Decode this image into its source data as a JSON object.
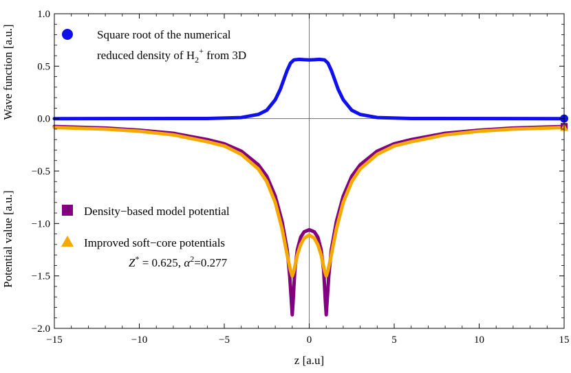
{
  "chart_data": {
    "type": "line",
    "title": "",
    "xlabel": "z  [a.u]",
    "ylabel_upper": "Wave function  [a.u.]",
    "ylabel_lower": "Potential value [a.u.]",
    "xlim": [
      -15,
      15
    ],
    "ylim": [
      -2.0,
      1.0
    ],
    "x_ticks": [
      -15,
      -10,
      -5,
      0,
      5,
      10,
      15
    ],
    "x_tick_labels": [
      "−15",
      "−10",
      "−5",
      "0",
      "5",
      "10",
      "15"
    ],
    "y_ticks": [
      -2.0,
      -1.5,
      -1.0,
      -0.5,
      0.0,
      0.5,
      1.0
    ],
    "y_tick_labels": [
      "−2.0",
      "−1.5",
      "−1.0",
      "−0.5",
      "0.0",
      "0.5",
      "1.0"
    ],
    "grid": false,
    "series": [
      {
        "key": "wave",
        "name_line1": "Square root of the numerical",
        "name_line2_prefix": "reduced density of H",
        "name_line2_sub": "2",
        "name_line2_sup": "+",
        "name_line2_suffix": " from 3D",
        "color": "#1010ee",
        "marker": "circle",
        "x": [
          -15,
          -6,
          -4,
          -3,
          -2.5,
          -2,
          -1.7,
          -1.5,
          -1.3,
          -1.1,
          -0.9,
          -0.6,
          -0.3,
          0,
          0.3,
          0.6,
          0.9,
          1.1,
          1.3,
          1.5,
          1.7,
          2,
          2.5,
          3,
          4,
          6,
          15
        ],
        "y": [
          0.0,
          0.001,
          0.01,
          0.04,
          0.08,
          0.18,
          0.28,
          0.37,
          0.46,
          0.53,
          0.56,
          0.565,
          0.562,
          0.56,
          0.562,
          0.565,
          0.56,
          0.53,
          0.46,
          0.37,
          0.28,
          0.18,
          0.08,
          0.04,
          0.01,
          0.001,
          0.0
        ]
      },
      {
        "key": "density",
        "name": "Density−based model potential",
        "color": "#800080",
        "marker": "square",
        "x": [
          -15,
          -12,
          -10,
          -8,
          -6,
          -5,
          -4,
          -3,
          -2.5,
          -2,
          -1.6,
          -1.3,
          -1.15,
          -1.05,
          -1.0,
          -0.95,
          -0.85,
          -0.7,
          -0.5,
          -0.3,
          0,
          0.3,
          0.5,
          0.7,
          0.85,
          0.95,
          1.0,
          1.05,
          1.15,
          1.3,
          1.6,
          2,
          2.5,
          3,
          4,
          5,
          6,
          8,
          10,
          12,
          15
        ],
        "y": [
          -0.075,
          -0.09,
          -0.11,
          -0.14,
          -0.2,
          -0.24,
          -0.31,
          -0.44,
          -0.55,
          -0.74,
          -0.98,
          -1.25,
          -1.5,
          -1.75,
          -1.87,
          -1.75,
          -1.45,
          -1.25,
          -1.13,
          -1.08,
          -1.06,
          -1.08,
          -1.13,
          -1.25,
          -1.45,
          -1.75,
          -1.87,
          -1.75,
          -1.5,
          -1.25,
          -0.98,
          -0.74,
          -0.55,
          -0.44,
          -0.31,
          -0.24,
          -0.2,
          -0.14,
          -0.11,
          -0.09,
          -0.075
        ]
      },
      {
        "key": "softcore",
        "name": "Improved soft−core potentials",
        "color": "#f5a800",
        "marker": "triangle",
        "param_z_prefix": "Z",
        "param_z_sup": "*",
        "param_z_value": " = 0.625, ",
        "param_alpha_prefix": "α",
        "param_alpha_sup": "2",
        "param_alpha_value": "=0.277",
        "x": [
          -15,
          -12,
          -10,
          -8,
          -6,
          -5,
          -4,
          -3,
          -2.5,
          -2,
          -1.6,
          -1.3,
          -1.1,
          -1.0,
          -0.9,
          -0.7,
          -0.5,
          -0.3,
          0,
          0.3,
          0.5,
          0.7,
          0.9,
          1.0,
          1.1,
          1.3,
          1.6,
          2,
          2.5,
          3,
          4,
          5,
          6,
          8,
          10,
          12,
          15
        ],
        "y": [
          -0.085,
          -0.1,
          -0.12,
          -0.155,
          -0.22,
          -0.26,
          -0.34,
          -0.48,
          -0.6,
          -0.8,
          -1.05,
          -1.3,
          -1.45,
          -1.5,
          -1.45,
          -1.3,
          -1.2,
          -1.14,
          -1.11,
          -1.14,
          -1.2,
          -1.3,
          -1.45,
          -1.5,
          -1.45,
          -1.3,
          -1.05,
          -0.8,
          -0.6,
          -0.48,
          -0.34,
          -0.26,
          -0.22,
          -0.155,
          -0.12,
          -0.1,
          -0.085
        ]
      }
    ]
  }
}
